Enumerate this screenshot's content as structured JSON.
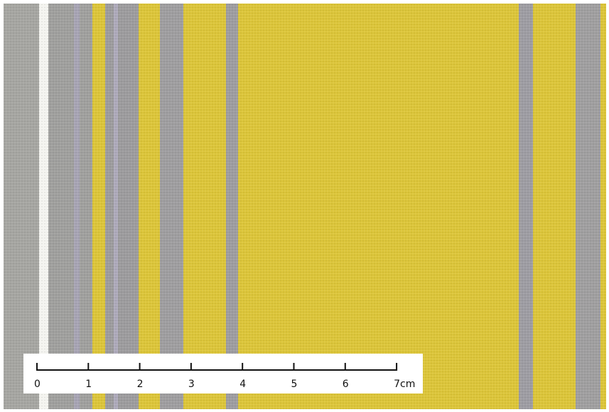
{
  "ruler": {
    "labels": [
      "0",
      "1",
      "2",
      "3",
      "4",
      "5",
      "6",
      "7cm"
    ]
  }
}
